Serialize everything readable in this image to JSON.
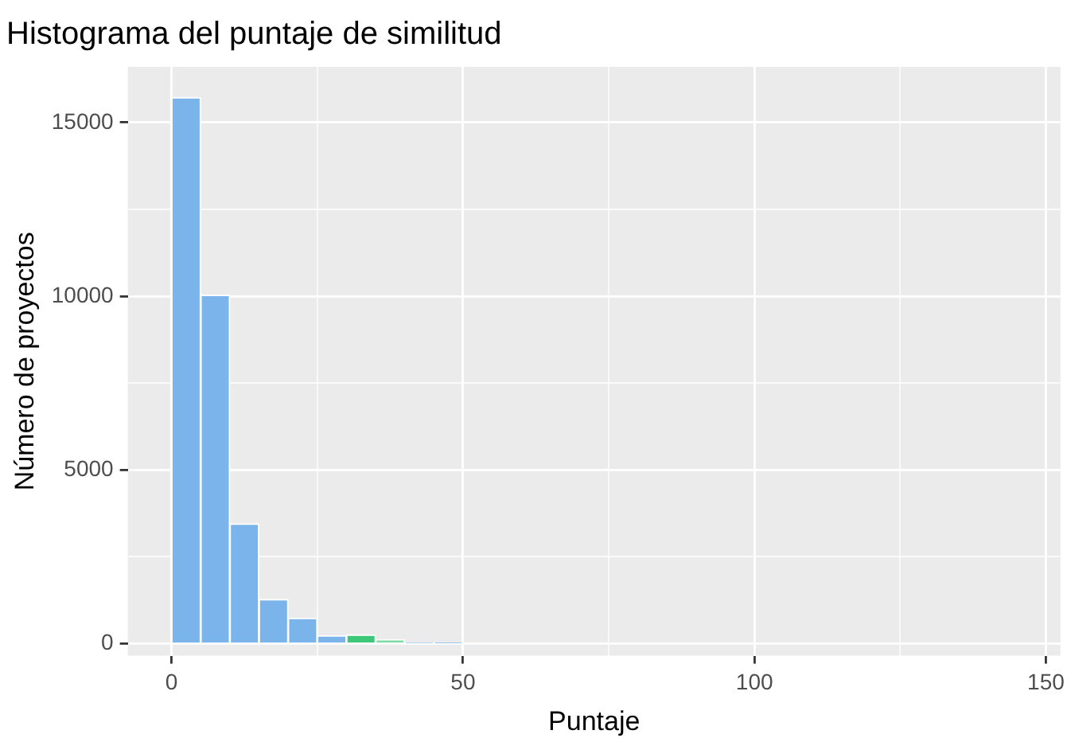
{
  "chart_data": {
    "type": "histogram",
    "title": "Histograma del puntaje de similitud",
    "xlabel": "Puntaje",
    "ylabel": "Número de proyectos",
    "bins": [
      0,
      5,
      10,
      15,
      20,
      25,
      30,
      35,
      40,
      45,
      50
    ],
    "values": [
      15720,
      10030,
      3450,
      1270,
      730,
      230,
      250,
      110,
      30,
      20
    ],
    "colors": [
      "#7ab4ea",
      "#7ab4ea",
      "#7ab4ea",
      "#7ab4ea",
      "#7ab4ea",
      "#7ab4ea",
      "#3cc878",
      "#7ddba5",
      "#7ab4ea",
      "#7ab4ea"
    ],
    "xlim": [
      -7.5,
      152.5
    ],
    "ylim": [
      -350,
      16600
    ],
    "xticks": [
      0,
      {
        "value": 25,
        "label": null
      },
      50,
      {
        "value": 75,
        "label": null
      },
      100,
      {
        "value": 125,
        "label": null
      },
      150
    ],
    "yticks": [
      0,
      {
        "value": 2500,
        "label": null
      },
      5000,
      {
        "value": 7500,
        "label": null
      },
      10000,
      {
        "value": 12500,
        "label": null
      },
      15000
    ],
    "grid": true
  }
}
